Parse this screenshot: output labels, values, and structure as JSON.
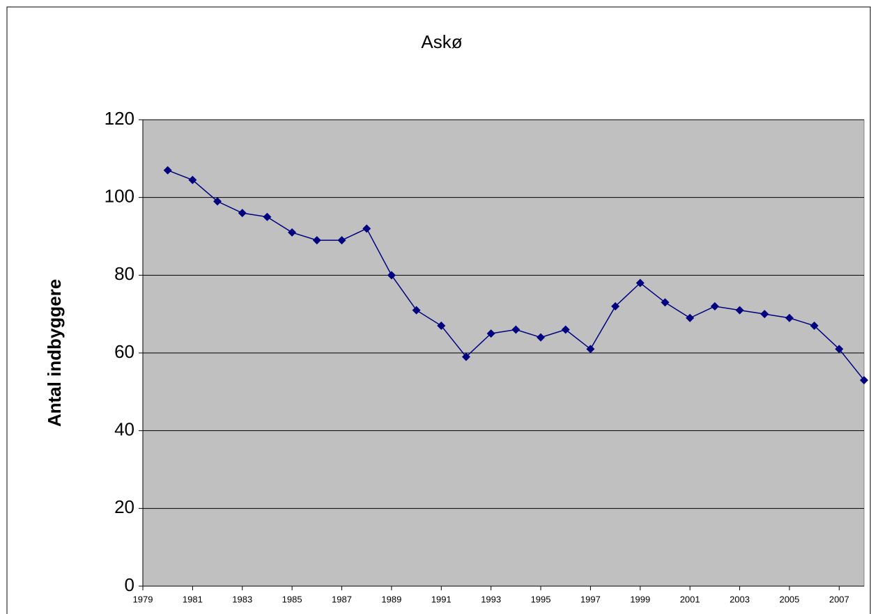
{
  "chart_data": {
    "type": "line",
    "title": "Askø",
    "y_label": "Antal indbyggere",
    "x": [
      1980,
      1981,
      1982,
      1983,
      1984,
      1985,
      1986,
      1987,
      1988,
      1989,
      1990,
      1991,
      1992,
      1993,
      1994,
      1995,
      1996,
      1997,
      1998,
      1999,
      2000,
      2001,
      2002,
      2003,
      2004,
      2005,
      2006,
      2007,
      2008
    ],
    "series": [
      {
        "name": "Askø",
        "color": "#000080",
        "values": [
          107,
          104.5,
          99,
          96,
          95,
          91,
          89,
          89,
          92,
          80,
          71,
          67,
          59,
          65,
          66,
          64,
          66,
          61,
          72,
          78,
          73,
          69,
          72,
          71,
          70,
          69,
          67,
          61,
          53
        ]
      }
    ],
    "xlim": [
      1979,
      2008
    ],
    "xticks": [
      1979,
      1981,
      1983,
      1985,
      1987,
      1989,
      1991,
      1993,
      1995,
      1997,
      1999,
      2001,
      2003,
      2005,
      2007
    ],
    "ylim": [
      0,
      120
    ],
    "yticks": [
      0,
      20,
      40,
      60,
      80,
      100,
      120
    ],
    "grid": true,
    "plot_background": "#c0c0c0",
    "legend": false
  }
}
